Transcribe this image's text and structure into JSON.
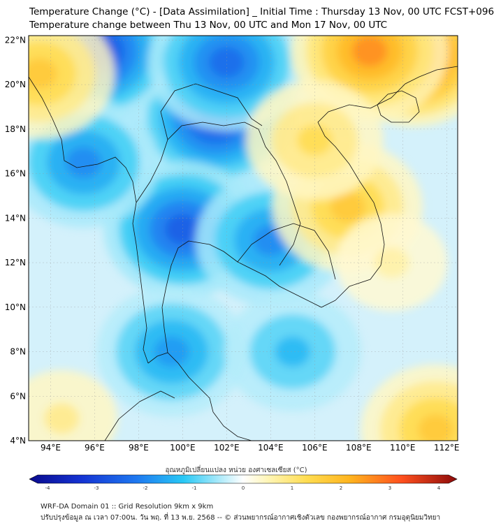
{
  "title_line1": "Temperature Change (°C) - [Data Assimilation] _ Initial Time : Thursday 13 Nov, 00 UTC FCST+096",
  "title_line2": "Temperature change between Thu 13 Nov, 00 UTC and Mon 17 Nov, 00 UTC",
  "lat_labels": [
    "22°N",
    "20°N",
    "18°N",
    "16°N",
    "14°N",
    "12°N",
    "10°N",
    "8°N",
    "6°N",
    "4°N"
  ],
  "lon_labels": [
    "94°E",
    "96°E",
    "98°E",
    "100°E",
    "102°E",
    "104°E",
    "106°E",
    "108°E",
    "110°E",
    "112°E"
  ],
  "colorbar": {
    "label": "อุณหภูมิเปลี่ยนแปลง หน่วย องศาเซลเซียส (°C)",
    "ticks": [
      "-4",
      "-3",
      "-2",
      "-1",
      "0",
      "1",
      "2",
      "3",
      "4"
    ],
    "range": [
      -4,
      4
    ]
  },
  "footer_line1": "WRF-DA Domain 01 :: Grid Resolution 9km x 9km",
  "footer_line2": "ปรับปรุงข้อมูล ณ เวลา 07:00น. วัน พฤ. ที่ 13 พ.ย. 2568 -- © ส่วนพยากรณ์อากาศเชิงตัวเลข กองพยากรณ์อากาศ กรมอุตุนิยมวิทยา",
  "map": {
    "extent_lon": [
      93,
      112.5
    ],
    "extent_lat": [
      4,
      22.2
    ],
    "field_anomalies": [
      {
        "lon": 101.5,
        "lat": 18.5,
        "value": -2.6
      },
      {
        "lon": 100.0,
        "lat": 13.5,
        "value": -2.4
      },
      {
        "lon": 96.0,
        "lat": 21.5,
        "value": -2.8
      },
      {
        "lon": 102.0,
        "lat": 21.0,
        "value": -2.2
      },
      {
        "lon": 104.0,
        "lat": 13.0,
        "value": -1.8
      },
      {
        "lon": 95.5,
        "lat": 16.5,
        "value": -1.8
      },
      {
        "lon": 99.5,
        "lat": 8.0,
        "value": -1.6
      },
      {
        "lon": 105.0,
        "lat": 8.0,
        "value": -1.2
      },
      {
        "lon": 110.5,
        "lat": 21.3,
        "value": 3.0
      },
      {
        "lon": 108.5,
        "lat": 21.5,
        "value": 2.4
      },
      {
        "lon": 107.5,
        "lat": 14.5,
        "value": 1.6
      },
      {
        "lon": 106.0,
        "lat": 17.5,
        "value": 1.2
      },
      {
        "lon": 93.5,
        "lat": 20.5,
        "value": 1.6
      },
      {
        "lon": 111.5,
        "lat": 4.5,
        "value": 1.6
      },
      {
        "lon": 94.5,
        "lat": 5.0,
        "value": 0.8
      },
      {
        "lon": 109.5,
        "lat": 12.0,
        "value": 0.6
      }
    ]
  }
}
